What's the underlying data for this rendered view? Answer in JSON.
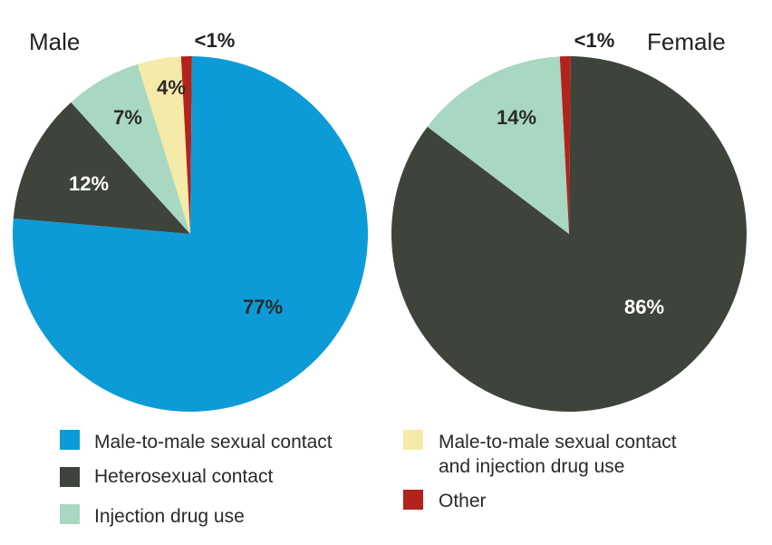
{
  "chart_data": [
    {
      "type": "pie",
      "title": "Male",
      "slices": [
        {
          "label": "Other",
          "display": "<1%",
          "value": 1,
          "color": "#b3231d"
        },
        {
          "label": "Male-to-male sexual contact",
          "display": "77%",
          "value": 77,
          "color": "#0c9bd7"
        },
        {
          "label": "Heterosexual contact",
          "display": "12%",
          "value": 12,
          "color": "#3e433b"
        },
        {
          "label": "Injection drug use",
          "display": "7%",
          "value": 7,
          "color": "#a8d8c1"
        },
        {
          "label": "Male-to-male sexual contact and injection drug use",
          "display": "4%",
          "value": 4,
          "color": "#f6eaa9"
        }
      ]
    },
    {
      "type": "pie",
      "title": "Female",
      "slices": [
        {
          "label": "Other",
          "display": "<1%",
          "value": 1,
          "color": "#b3231d"
        },
        {
          "label": "Heterosexual contact",
          "display": "86%",
          "value": 86,
          "color": "#3e433b"
        },
        {
          "label": "Injection drug use",
          "display": "14%",
          "value": 14,
          "color": "#a8d8c1"
        }
      ]
    }
  ],
  "legend": [
    {
      "lines": [
        "Male-to-male sexual contact"
      ],
      "color": "#0c9bd7"
    },
    {
      "lines": [
        "Heterosexual contact"
      ],
      "color": "#3e433b"
    },
    {
      "lines": [
        "Injection drug use"
      ],
      "color": "#a8d8c1"
    },
    {
      "lines": [
        "Male-to-male sexual contact",
        "and injection drug use"
      ],
      "color": "#f6eaa9"
    },
    {
      "lines": [
        "Other"
      ],
      "color": "#b3231d"
    }
  ]
}
